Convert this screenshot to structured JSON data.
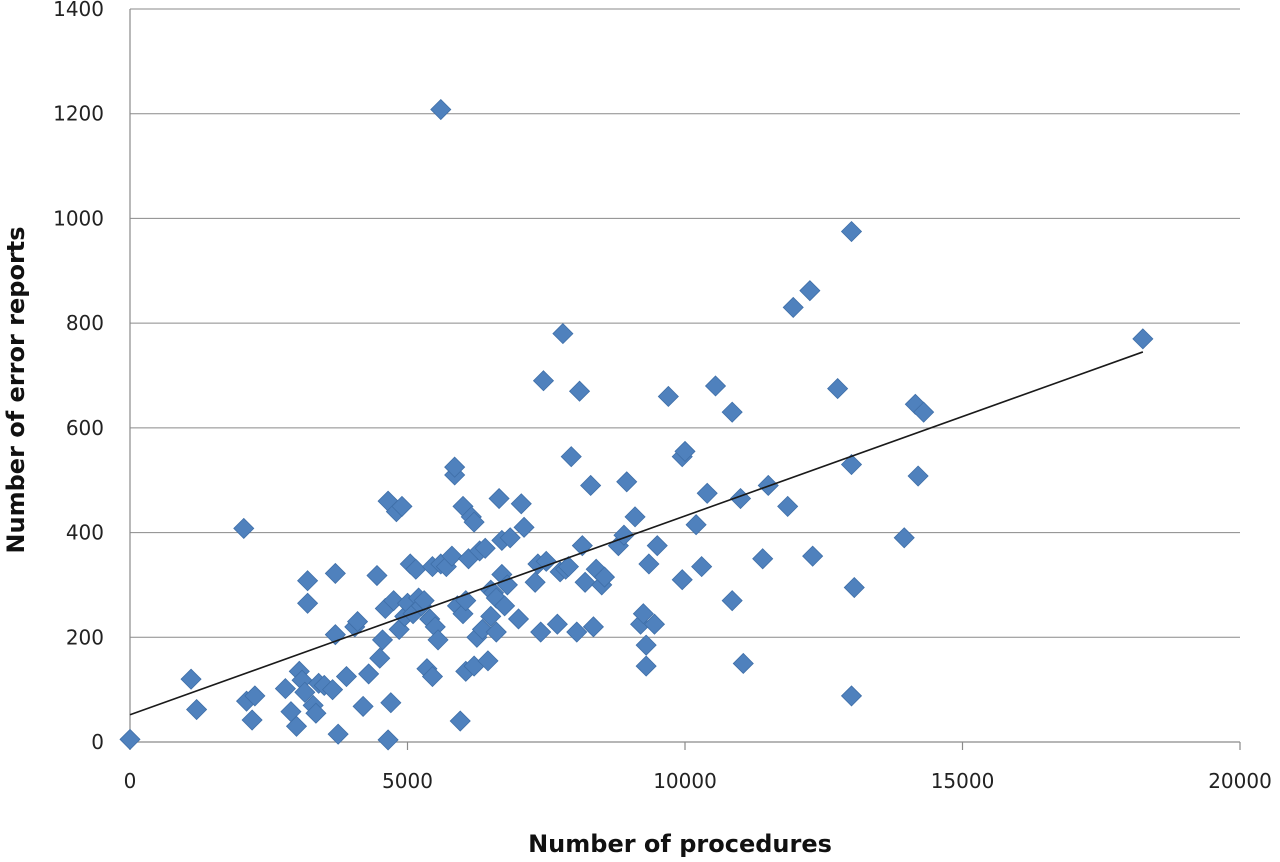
{
  "chart_data": {
    "type": "scatter",
    "xlabel": "Number of procedures",
    "ylabel": "Number of error reports",
    "xlim": [
      0,
      20000
    ],
    "ylim": [
      0,
      1400
    ],
    "xticks": [
      0,
      5000,
      10000,
      15000,
      20000
    ],
    "yticks": [
      0,
      200,
      400,
      600,
      800,
      1000,
      1200,
      1400
    ],
    "grid": "horizontal",
    "legend": "none",
    "marker": "diamond",
    "marker_color": "#4f81bd",
    "trendline": {
      "type": "linear",
      "from": [
        0,
        52
      ],
      "to": [
        18250,
        745
      ]
    },
    "points": [
      [
        0,
        5
      ],
      [
        1100,
        120
      ],
      [
        1200,
        62
      ],
      [
        2050,
        408
      ],
      [
        2100,
        78
      ],
      [
        2200,
        42
      ],
      [
        2250,
        88
      ],
      [
        2800,
        102
      ],
      [
        2900,
        58
      ],
      [
        3000,
        30
      ],
      [
        3050,
        135
      ],
      [
        3100,
        118
      ],
      [
        3150,
        95
      ],
      [
        3200,
        308
      ],
      [
        3200,
        265
      ],
      [
        3300,
        70
      ],
      [
        3350,
        55
      ],
      [
        3400,
        112
      ],
      [
        3500,
        108
      ],
      [
        3650,
        100
      ],
      [
        3700,
        205
      ],
      [
        3700,
        322
      ],
      [
        3750,
        15
      ],
      [
        3900,
        125
      ],
      [
        4050,
        220
      ],
      [
        4100,
        230
      ],
      [
        4200,
        68
      ],
      [
        4300,
        130
      ],
      [
        4450,
        318
      ],
      [
        4500,
        160
      ],
      [
        4550,
        195
      ],
      [
        4600,
        255
      ],
      [
        4650,
        460
      ],
      [
        4650,
        4
      ],
      [
        4700,
        75
      ],
      [
        4750,
        270
      ],
      [
        4800,
        440
      ],
      [
        4850,
        215
      ],
      [
        4900,
        450
      ],
      [
        4950,
        240
      ],
      [
        5000,
        265
      ],
      [
        5050,
        340
      ],
      [
        5100,
        245
      ],
      [
        5150,
        330
      ],
      [
        5200,
        275
      ],
      [
        5250,
        260
      ],
      [
        5300,
        270
      ],
      [
        5350,
        140
      ],
      [
        5400,
        235
      ],
      [
        5450,
        335
      ],
      [
        5450,
        125
      ],
      [
        5500,
        220
      ],
      [
        5550,
        195
      ],
      [
        5600,
        1208
      ],
      [
        5600,
        340
      ],
      [
        5700,
        335
      ],
      [
        5800,
        355
      ],
      [
        5850,
        510
      ],
      [
        5850,
        525
      ],
      [
        5900,
        260
      ],
      [
        5950,
        40
      ],
      [
        6000,
        450
      ],
      [
        6000,
        245
      ],
      [
        6050,
        270
      ],
      [
        6050,
        135
      ],
      [
        6100,
        350
      ],
      [
        6150,
        430
      ],
      [
        6200,
        420
      ],
      [
        6200,
        145
      ],
      [
        6250,
        200
      ],
      [
        6300,
        365
      ],
      [
        6350,
        215
      ],
      [
        6400,
        370
      ],
      [
        6450,
        155
      ],
      [
        6500,
        240
      ],
      [
        6500,
        290
      ],
      [
        6550,
        285
      ],
      [
        6600,
        275
      ],
      [
        6600,
        210
      ],
      [
        6650,
        465
      ],
      [
        6700,
        320
      ],
      [
        6700,
        385
      ],
      [
        6750,
        260
      ],
      [
        6800,
        300
      ],
      [
        6850,
        390
      ],
      [
        7000,
        235
      ],
      [
        7050,
        455
      ],
      [
        7100,
        410
      ],
      [
        7300,
        305
      ],
      [
        7350,
        340
      ],
      [
        7400,
        210
      ],
      [
        7450,
        690
      ],
      [
        7500,
        345
      ],
      [
        7700,
        225
      ],
      [
        7750,
        325
      ],
      [
        7800,
        780
      ],
      [
        7850,
        330
      ],
      [
        7900,
        335
      ],
      [
        7950,
        545
      ],
      [
        8050,
        210
      ],
      [
        8100,
        670
      ],
      [
        8150,
        375
      ],
      [
        8200,
        305
      ],
      [
        8300,
        490
      ],
      [
        8350,
        220
      ],
      [
        8400,
        330
      ],
      [
        8500,
        300
      ],
      [
        8550,
        315
      ],
      [
        8800,
        375
      ],
      [
        8900,
        395
      ],
      [
        8950,
        497
      ],
      [
        9100,
        430
      ],
      [
        9200,
        225
      ],
      [
        9250,
        245
      ],
      [
        9300,
        185
      ],
      [
        9300,
        145
      ],
      [
        9350,
        340
      ],
      [
        9450,
        225
      ],
      [
        9500,
        375
      ],
      [
        9700,
        660
      ],
      [
        9950,
        310
      ],
      [
        9950,
        545
      ],
      [
        10000,
        555
      ],
      [
        10200,
        415
      ],
      [
        10300,
        335
      ],
      [
        10400,
        475
      ],
      [
        10550,
        680
      ],
      [
        10850,
        630
      ],
      [
        10850,
        270
      ],
      [
        11000,
        465
      ],
      [
        11050,
        150
      ],
      [
        11400,
        350
      ],
      [
        11500,
        490
      ],
      [
        11850,
        450
      ],
      [
        11950,
        830
      ],
      [
        12250,
        862
      ],
      [
        12300,
        355
      ],
      [
        12750,
        675
      ],
      [
        13000,
        975
      ],
      [
        13000,
        530
      ],
      [
        13050,
        295
      ],
      [
        13000,
        88
      ],
      [
        13950,
        390
      ],
      [
        14150,
        645
      ],
      [
        14200,
        508
      ],
      [
        14300,
        630
      ],
      [
        18250,
        770
      ]
    ]
  }
}
